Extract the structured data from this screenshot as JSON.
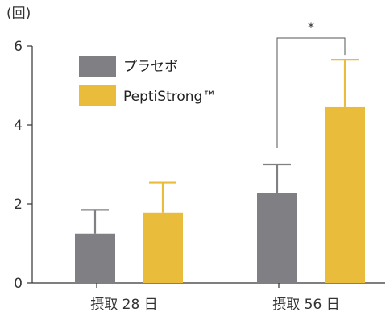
{
  "chart_data": {
    "type": "bar",
    "y_unit_label": "(回)",
    "categories": [
      "摂取 28 日",
      "摂取 56 日"
    ],
    "yticks": [
      "0",
      "2",
      "4",
      "6"
    ],
    "ylim": [
      0,
      6
    ],
    "grid": false,
    "legend_position": "top-left",
    "series": [
      {
        "name": "プラセボ",
        "color": "#808084",
        "values": [
          1.25,
          2.27
        ],
        "error": [
          0.6,
          0.73
        ]
      },
      {
        "name": "PeptiStrong™",
        "color": "#eabc3b",
        "values": [
          1.78,
          4.45
        ],
        "error": [
          0.76,
          1.2
        ]
      }
    ],
    "annotations": [
      {
        "category": 1,
        "text": "*"
      }
    ]
  }
}
